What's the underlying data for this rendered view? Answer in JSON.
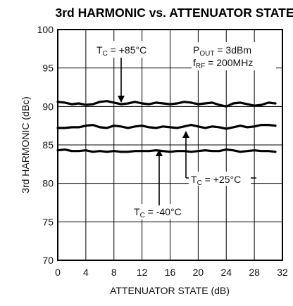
{
  "chart_data": {
    "type": "line",
    "title": "3rd HARMONIC vs. ATTENUATOR STATE",
    "xlabel": "ATTENUATOR STATE (dB)",
    "ylabel": "3rd HARMONIC (dBc)",
    "xlim": [
      0,
      32
    ],
    "ylim": [
      70,
      100
    ],
    "xticks": [
      0,
      4,
      8,
      12,
      16,
      20,
      24,
      28,
      32
    ],
    "yticks": [
      70,
      75,
      80,
      85,
      90,
      95,
      100
    ],
    "grid": true,
    "conditions": {
      "pout_prefix": "P",
      "pout_sub": "OUT",
      "pout_value": " = 3dBm",
      "frf_prefix": "f",
      "frf_sub": "RF",
      "frf_value": " = 200MHz"
    },
    "x": [
      0,
      1,
      2,
      3,
      4,
      5,
      6,
      7,
      8,
      9,
      10,
      11,
      12,
      13,
      14,
      15,
      16,
      17,
      18,
      19,
      20,
      21,
      22,
      23,
      24,
      25,
      26,
      27,
      28,
      29,
      30,
      31
    ],
    "series": [
      {
        "label_prefix": "T",
        "label_sub": "C",
        "label_value": " = +85°C",
        "values": [
          90.6,
          90.5,
          90.3,
          90.4,
          90.2,
          90.3,
          90.6,
          90.7,
          90.5,
          90.3,
          90.4,
          90.6,
          90.4,
          90.3,
          90.5,
          90.4,
          90.3,
          90.4,
          90.6,
          90.5,
          90.3,
          90.4,
          90.5,
          90.2,
          90.0,
          90.4,
          90.5,
          90.3,
          90.1,
          90.2,
          90.5,
          90.4
        ]
      },
      {
        "label_prefix": "T",
        "label_sub": "C",
        "label_value": " = +25°C",
        "values": [
          87.2,
          87.2,
          87.3,
          87.3,
          87.5,
          87.6,
          87.3,
          87.2,
          87.5,
          87.4,
          87.2,
          87.4,
          87.5,
          87.3,
          87.2,
          87.4,
          87.3,
          87.2,
          87.4,
          87.6,
          87.4,
          87.2,
          87.4,
          87.3,
          87.1,
          87.3,
          87.5,
          87.3,
          87.4,
          87.6,
          87.6,
          87.5
        ]
      },
      {
        "label_prefix": "T",
        "label_sub": "C",
        "label_value": " = -40°C",
        "values": [
          84.3,
          84.4,
          84.2,
          84.2,
          84.3,
          84.1,
          84.2,
          84.1,
          84.2,
          84.1,
          84.1,
          84.2,
          84.2,
          84.2,
          84.3,
          84.2,
          84.1,
          84.2,
          84.2,
          84.1,
          84.2,
          84.3,
          84.2,
          84.2,
          84.4,
          84.3,
          84.1,
          84.2,
          84.3,
          84.2,
          84.2,
          84.1
        ]
      }
    ]
  }
}
